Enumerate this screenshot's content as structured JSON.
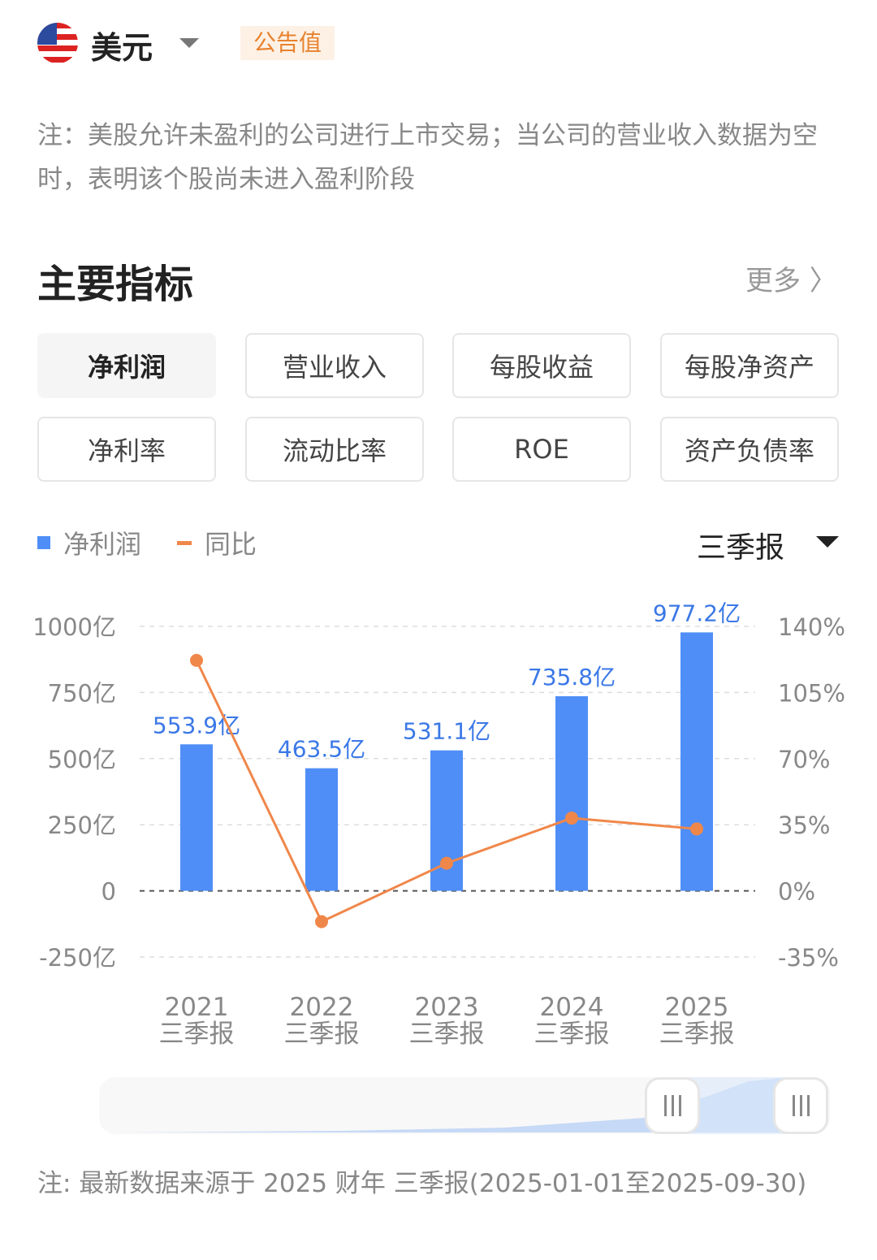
{
  "header": {
    "currency": "美元",
    "flag_icon": "us-flag-icon",
    "badge": "公告值"
  },
  "note_top": "注：美股允许未盈利的公司进行上市交易；当公司的营业收入数据为空时，表明该个股尚未进入盈利阶段",
  "section": {
    "title": "主要指标",
    "more": "更多 〉"
  },
  "tabs": [
    {
      "label": "净利润",
      "active": true
    },
    {
      "label": "营业收入"
    },
    {
      "label": "每股收益"
    },
    {
      "label": "每股净资产"
    },
    {
      "label": "净利率"
    },
    {
      "label": "流动比率"
    },
    {
      "label": "ROE"
    },
    {
      "label": "资产负债率"
    }
  ],
  "legend": [
    {
      "label": "净利润",
      "color": "#4f8ef7"
    },
    {
      "label": "同比",
      "color": "#f0874a"
    }
  ],
  "period_select": "三季报",
  "chart_data": {
    "type": "bar+line",
    "categories": [
      "2021\n三季报",
      "2022\n三季报",
      "2023\n三季报",
      "2024\n三季报",
      "2025\n三季报"
    ],
    "years": [
      "2021",
      "2022",
      "2023",
      "2024",
      "2025"
    ],
    "period": "三季报",
    "series": [
      {
        "name": "净利润",
        "type": "bar",
        "axis": "left",
        "values": [
          553.9,
          463.5,
          531.1,
          735.8,
          977.2
        ],
        "labels": [
          "553.9亿",
          "463.5亿",
          "531.1亿",
          "735.8亿",
          "977.2亿"
        ],
        "color": "#4f8ef7"
      },
      {
        "name": "同比",
        "type": "line",
        "axis": "right",
        "values": [
          122,
          -16.3,
          14.6,
          38.5,
          32.8
        ],
        "color": "#f0874a"
      }
    ],
    "left_axis": {
      "ticks": [
        "1000亿",
        "750亿",
        "500亿",
        "250亿",
        "0",
        "-250亿"
      ],
      "range": [
        -250,
        1000
      ]
    },
    "right_axis": {
      "ticks": [
        "140%",
        "105%",
        "70%",
        "35%",
        "0%",
        "-35%"
      ],
      "range": [
        -35,
        140
      ]
    },
    "grid": "dashed horizontal"
  },
  "note_bottom": "注: 最新数据来源于 2025 财年 三季报(2025-01-01至2025-09-30)"
}
